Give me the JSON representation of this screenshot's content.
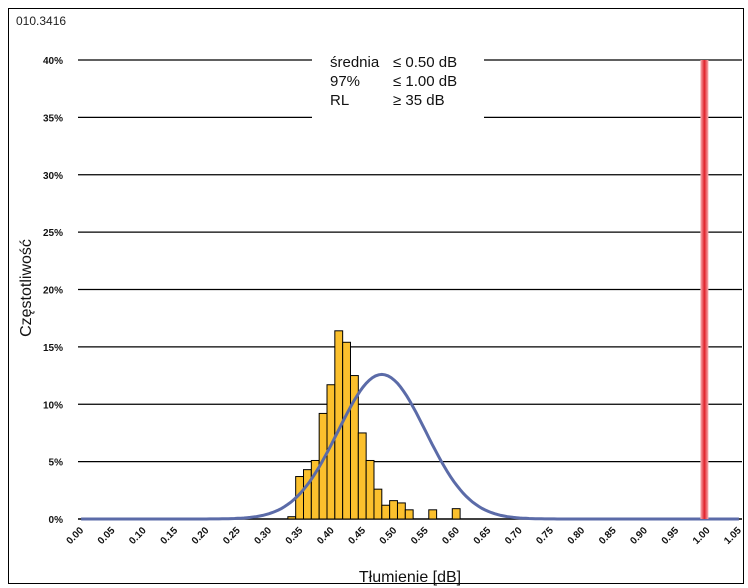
{
  "figure_code": "010.3416",
  "chart_data": {
    "type": "bar",
    "title": "",
    "xlabel": "Tłumienie [dB]",
    "ylabel": "Częstotliwość",
    "xlim": [
      0.0,
      1.06
    ],
    "ylim": [
      0,
      40
    ],
    "grid": true,
    "x_ticks": [
      "0.00",
      "0.05",
      "0.10",
      "0.15",
      "0.20",
      "0.25",
      "0.30",
      "0.35",
      "0.40",
      "0.45",
      "0.50",
      "0.55",
      "0.60",
      "0.65",
      "0.70",
      "0.75",
      "0.80",
      "0.85",
      "0.90",
      "0.95",
      "1.00",
      "1.05"
    ],
    "x_tick_values": [
      0.0,
      0.05,
      0.1,
      0.15,
      0.2,
      0.25,
      0.3,
      0.35,
      0.4,
      0.45,
      0.5,
      0.55,
      0.6,
      0.65,
      0.7,
      0.75,
      0.8,
      0.85,
      0.9,
      0.95,
      1.0,
      1.05
    ],
    "y_ticks": [
      "0%",
      "5%",
      "10%",
      "15%",
      "20%",
      "25%",
      "30%",
      "35%",
      "40%"
    ],
    "y_tick_values": [
      0,
      5,
      10,
      15,
      20,
      25,
      30,
      35,
      40
    ],
    "bin_width": 0.0125,
    "bars": {
      "x": [
        0.335,
        0.3475,
        0.36,
        0.3725,
        0.385,
        0.3975,
        0.41,
        0.4225,
        0.435,
        0.4475,
        0.46,
        0.4725,
        0.485,
        0.4975,
        0.51,
        0.5225,
        0.535,
        0.5475,
        0.56,
        0.5725,
        0.585,
        0.5975,
        0.61,
        0.6225,
        0.635,
        0.6475,
        0.66,
        0.6725,
        0.685,
        0.6975,
        0.71,
        0.7225,
        0.735,
        0.7475,
        0.76,
        0.7725,
        0.785,
        0.7975,
        0.81
      ],
      "values": [
        0.2,
        3.7,
        4.3,
        5.1,
        9.2,
        11.7,
        16.4,
        15.4,
        12.5,
        7.5,
        5.1,
        2.6,
        1.2,
        1.6,
        1.4,
        0.8,
        0.0,
        0.0,
        0.8,
        0.0,
        0.0,
        0.9,
        0.0,
        0.0,
        0.0,
        0.0,
        0.0,
        0.0,
        0.0,
        0.0,
        0.0,
        0.0,
        0.0,
        0.0,
        0.0,
        0.0,
        0.0,
        0.0,
        0.0
      ]
    },
    "bar_color": "#FBC02D",
    "curve": {
      "type": "normal",
      "mean": 0.485,
      "sd": 0.07,
      "peak": 12.6,
      "color": "#5B6BA8"
    },
    "limit_line": {
      "x": 1.0,
      "color": "#E0202A"
    },
    "annotations": [
      {
        "label": "średnia",
        "value": "≤ 0.50 dB"
      },
      {
        "label": "97%",
        "value": "≤ 1.00 dB"
      },
      {
        "label": "RL",
        "value": "≥ 35 dB"
      }
    ]
  }
}
